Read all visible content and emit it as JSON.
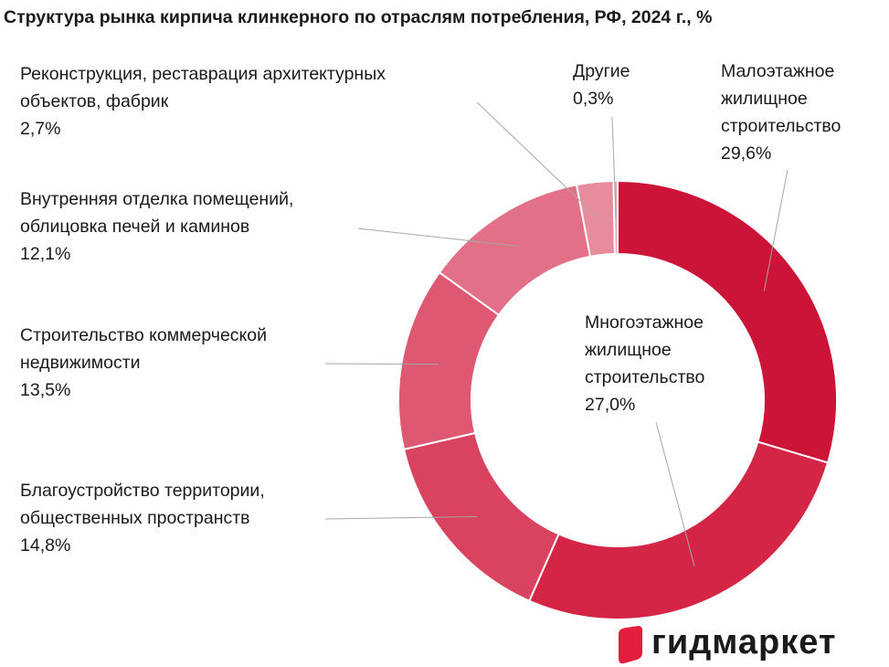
{
  "chart_data": {
    "type": "pie",
    "title": "Структура рынка кирпича клинкерного по отраслям потребления, РФ, 2024 г., %",
    "donut": true,
    "slices": [
      {
        "label": "Малоэтажное\nжилищное\nстроительство",
        "value": 29.6,
        "value_label": "29,6%",
        "color": "#cc1338"
      },
      {
        "label": "Многоэтажное\nжилищное\nстроительство",
        "value": 27.0,
        "value_label": "27,0%",
        "color": "#d42546"
      },
      {
        "label": "Благоустройство территории,\nобщественных пространств",
        "value": 14.8,
        "value_label": "14,8%",
        "color": "#da4360"
      },
      {
        "label": "Строительство коммерческой\nнедвижимости",
        "value": 13.5,
        "value_label": "13,5%",
        "color": "#de5872"
      },
      {
        "label": "Внутренняя отделка помещений,\nоблицовка печей и каминов",
        "value": 12.1,
        "value_label": "12,1%",
        "color": "#e27086"
      },
      {
        "label": "Реконструкция, реставрация архитектурных\nобъектов, фабрик",
        "value": 2.7,
        "value_label": "2,7%",
        "color": "#e68c9d"
      },
      {
        "label": "Другие",
        "value": 0.3,
        "value_label": "0,3%",
        "color": "#ec9fae"
      }
    ]
  },
  "logo": {
    "text": "гидмаркет",
    "mark_color": "#e31e3c"
  }
}
